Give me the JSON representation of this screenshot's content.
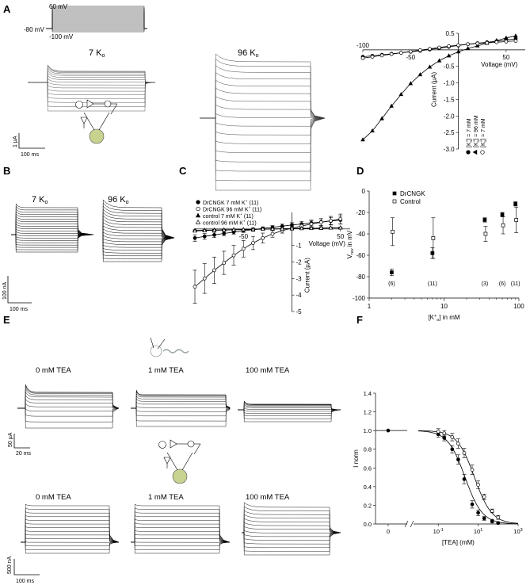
{
  "panel_labels": [
    "A",
    "B",
    "C",
    "D",
    "E",
    "F"
  ],
  "protocol": {
    "top_label": "60 mV",
    "hold_label": "-80 mV",
    "bottom_label": "-100 mV"
  },
  "panel_a": {
    "left_label": "7 K",
    "right_label": "96 K",
    "subscript": "o",
    "scale_y": "1 µA",
    "scale_x": "100 ms"
  },
  "panel_b": {
    "left_label": "7 K",
    "right_label": "96 K",
    "subscript": "o",
    "scale_y": "100 nA",
    "scale_x": "100 ms"
  },
  "panel_e": {
    "top_labels": [
      "0 mM TEA",
      "1 mM TEA",
      "100 mM TEA"
    ],
    "bottom_labels": [
      "0 mM TEA",
      "1 mM TEA",
      "100 mM TEA"
    ],
    "scale_top_y": "50 µA",
    "scale_top_x": "20 ms",
    "scale_bottom_y": "500 nA",
    "scale_bottom_x": "100 ms"
  },
  "chart_data": [
    {
      "panel": "A",
      "type": "line",
      "xlabel": "Voltage (mV)",
      "ylabel": "Current (µA)",
      "xlim": [
        -100,
        70
      ],
      "ylim": [
        -3.0,
        0.5
      ],
      "x_ticks": [
        "-100",
        "-50",
        "50"
      ],
      "x_tick_values": [
        -100,
        -50,
        50
      ],
      "y_ticks": [
        "0.5",
        "-0.5",
        "-1.0",
        "-1.5",
        "-2.0",
        "-2.5",
        "-3.0"
      ],
      "y_tick_values": [
        0.5,
        -0.5,
        -1.0,
        -1.5,
        -2.0,
        -2.5,
        -3.0
      ],
      "legend": [
        {
          "symbol": "filled-circle",
          "prefix": "[K",
          "sup": "+",
          "sub": "o",
          "suffix": "] =   7 mM"
        },
        {
          "symbol": "filled-triangle",
          "prefix": "[K",
          "sup": "+",
          "sub": "o",
          "suffix": "] = 96 mM"
        },
        {
          "symbol": "open-circle",
          "prefix": "[K",
          "sup": "+",
          "sub": "o",
          "suffix": "] =   7 mM"
        }
      ],
      "series": [
        {
          "marker": "filled-circle",
          "x": [
            -100,
            -90,
            -80,
            -70,
            -60,
            -50,
            -40,
            -30,
            -20,
            -10,
            0,
            10,
            20,
            30,
            40,
            50,
            60
          ],
          "y": [
            -0.21,
            -0.18,
            -0.15,
            -0.12,
            -0.09,
            -0.06,
            -0.03,
            0.01,
            0.05,
            0.09,
            0.13,
            0.17,
            0.2,
            0.23,
            0.26,
            0.3,
            0.33
          ]
        },
        {
          "marker": "filled-triangle",
          "x": [
            -100,
            -90,
            -80,
            -70,
            -60,
            -50,
            -40,
            -30,
            -20,
            -10,
            0,
            10,
            20,
            30,
            40,
            50,
            60
          ],
          "y": [
            -2.72,
            -2.45,
            -2.08,
            -1.7,
            -1.35,
            -1.02,
            -0.75,
            -0.52,
            -0.33,
            -0.18,
            -0.06,
            0.04,
            0.12,
            0.2,
            0.28,
            0.36,
            0.42
          ]
        },
        {
          "marker": "open-circle",
          "x": [
            -100,
            -90,
            -80,
            -70,
            -60,
            -50,
            -40,
            -30,
            -20,
            -10,
            0,
            10,
            20,
            30,
            40,
            50,
            60
          ],
          "y": [
            -0.25,
            -0.21,
            -0.17,
            -0.13,
            -0.09,
            -0.05,
            -0.01,
            0.03,
            0.07,
            0.11,
            0.14,
            0.17,
            0.19,
            0.21,
            0.23,
            0.25,
            0.27
          ]
        }
      ]
    },
    {
      "panel": "C",
      "type": "line",
      "xlabel": "Voltage (mV)",
      "ylabel": "Current (µA)",
      "xlim": [
        -100,
        60
      ],
      "ylim": [
        -5,
        1
      ],
      "x_ticks": [
        "-50",
        "50"
      ],
      "x_tick_values": [
        -50,
        50
      ],
      "y_ticks": [
        "-1",
        "-2",
        "-3",
        "-4",
        "-5"
      ],
      "y_tick_values": [
        -1,
        -2,
        -3,
        -4,
        -5
      ],
      "legend": [
        {
          "symbol": "filled-circle",
          "prefix": "DrCNGK 7 mM K",
          "sup": "+",
          "suffix": " (11)"
        },
        {
          "symbol": "open-circle",
          "prefix": "DrCNGK 96 mM K",
          "sup": "+",
          "suffix": " (11)"
        },
        {
          "symbol": "filled-triangle",
          "prefix": "control 7 mM K",
          "sup": "+",
          "suffix": " (11)"
        },
        {
          "symbol": "open-triangle",
          "prefix": "control 96 mM K",
          "sup": "+",
          "suffix": " (11)"
        }
      ],
      "series": [
        {
          "marker": "filled-circle",
          "x": [
            -100,
            -90,
            -80,
            -70,
            -60,
            -50,
            -40,
            -30,
            -20,
            -10,
            0,
            10,
            20,
            30,
            40,
            50
          ],
          "y": [
            -0.55,
            -0.45,
            -0.36,
            -0.27,
            -0.19,
            -0.11,
            -0.04,
            0.03,
            0.1,
            0.17,
            0.24,
            0.3,
            0.36,
            0.42,
            0.48,
            0.54
          ],
          "err": [
            0.2,
            0.18,
            0.16,
            0.14,
            0.12,
            0.1,
            0.1,
            0.1,
            0.1,
            0.12,
            0.14,
            0.16,
            0.18,
            0.2,
            0.22,
            0.25
          ]
        },
        {
          "marker": "open-circle",
          "x": [
            -100,
            -90,
            -80,
            -70,
            -60,
            -50,
            -40,
            -30,
            -20,
            -10,
            0,
            10,
            20,
            30,
            40,
            50
          ],
          "y": [
            -3.5,
            -3.0,
            -2.5,
            -2.05,
            -1.6,
            -1.2,
            -0.85,
            -0.55,
            -0.3,
            -0.1,
            0.05,
            0.18,
            0.3,
            0.4,
            0.5,
            0.6
          ],
          "err": [
            1.0,
            0.9,
            0.8,
            0.7,
            0.6,
            0.5,
            0.4,
            0.3,
            0.2,
            0.15,
            0.12,
            0.15,
            0.18,
            0.22,
            0.26,
            0.3
          ]
        },
        {
          "marker": "filled-triangle",
          "x": [
            -100,
            -90,
            -80,
            -70,
            -60,
            -50,
            -40,
            -30,
            -20,
            -10,
            0,
            10,
            20,
            30,
            40,
            50
          ],
          "y": [
            -0.08,
            -0.07,
            -0.06,
            -0.05,
            -0.04,
            -0.03,
            -0.02,
            -0.01,
            0.0,
            0.01,
            0.02,
            0.03,
            0.04,
            0.05,
            0.06,
            0.07
          ],
          "err": [
            0.03,
            0.03,
            0.03,
            0.03,
            0.03,
            0.03,
            0.03,
            0.03,
            0.03,
            0.03,
            0.03,
            0.03,
            0.03,
            0.03,
            0.03,
            0.03
          ]
        },
        {
          "marker": "open-triangle",
          "x": [
            -100,
            -90,
            -80,
            -70,
            -60,
            -50,
            -40,
            -30,
            -20,
            -10,
            0,
            10,
            20,
            30,
            40,
            50
          ],
          "y": [
            -0.12,
            -0.1,
            -0.08,
            -0.07,
            -0.05,
            -0.04,
            -0.03,
            -0.01,
            0.0,
            0.01,
            0.02,
            0.03,
            0.04,
            0.05,
            0.06,
            0.07
          ],
          "err": [
            0.04,
            0.04,
            0.04,
            0.04,
            0.04,
            0.04,
            0.04,
            0.04,
            0.04,
            0.04,
            0.04,
            0.04,
            0.04,
            0.04,
            0.04,
            0.04
          ]
        }
      ]
    },
    {
      "panel": "D",
      "type": "scatter",
      "xlabel_prefix": "[K",
      "xlabel_sup": "+",
      "xlabel_sub": "o",
      "xlabel_suffix": "] in mM",
      "ylabel": "V",
      "ylabel_sub": "rev",
      "ylabel_suffix": " in mV",
      "x_scale": "log",
      "xlim": [
        1,
        100
      ],
      "ylim": [
        -100,
        0
      ],
      "x_ticks": [
        "1",
        "10",
        "100"
      ],
      "x_tick_values": [
        1,
        10,
        100
      ],
      "y_ticks": [
        "0",
        "-20",
        "-40",
        "-60",
        "-80",
        "-100"
      ],
      "y_tick_values": [
        0,
        -20,
        -40,
        -60,
        -80,
        -100
      ],
      "legend": [
        "DrCNGK",
        "Control"
      ],
      "series": [
        {
          "name": "DrCNGK",
          "marker": "filled-square",
          "x": [
            2,
            7,
            35,
            60,
            90
          ],
          "y": [
            -76,
            -58,
            -27,
            -22,
            -12
          ],
          "err": [
            3,
            5,
            2,
            2,
            2
          ]
        },
        {
          "name": "Control",
          "marker": "open-square",
          "x": [
            2,
            7,
            35,
            60,
            90
          ],
          "y": [
            -38,
            -44,
            -40,
            -32,
            -27
          ],
          "err": [
            13,
            19,
            7,
            8,
            12
          ]
        }
      ],
      "n_labels": [
        {
          "x": 2,
          "text": "(6)"
        },
        {
          "x": 7,
          "text": "(11)"
        },
        {
          "x": 35,
          "text": "(3)"
        },
        {
          "x": 60,
          "text": "(6)"
        },
        {
          "x": 90,
          "text": "(11)"
        }
      ]
    },
    {
      "panel": "F",
      "type": "line",
      "xlabel": "[TEA] (mM)",
      "ylabel": "I norm",
      "x_scale": "log",
      "xlim": [
        0.01,
        1000
      ],
      "ylim": [
        0,
        1.4
      ],
      "x_ticks": [
        "0",
        "10",
        "10",
        "10"
      ],
      "x_tick_exponents": [
        "",
        "-1",
        "1",
        "3"
      ],
      "x_tick_values": [
        0,
        0.1,
        10,
        1000
      ],
      "y_ticks": [
        "0.0",
        "0.2",
        "0.4",
        "0.6",
        "0.8",
        "1.0",
        "1.2",
        "1.4"
      ],
      "y_tick_values": [
        0,
        0.2,
        0.4,
        0.6,
        0.8,
        1.0,
        1.2,
        1.4
      ],
      "zero_point": {
        "y": 1.0
      },
      "series": [
        {
          "marker": "filled-circle",
          "ic50": 2.2,
          "x": [
            0.1,
            0.2,
            0.5,
            1,
            2,
            5,
            10,
            20,
            50,
            100
          ],
          "y": [
            0.96,
            0.92,
            0.8,
            0.69,
            0.48,
            0.21,
            0.12,
            0.06,
            0.03,
            0.01
          ],
          "err": [
            0.03,
            0.03,
            0.04,
            0.05,
            0.05,
            0.04,
            0.03,
            0.02,
            0.02,
            0.01
          ]
        },
        {
          "marker": "open-circle",
          "ic50": 6.5,
          "x": [
            0.1,
            0.2,
            0.5,
            1,
            2,
            5,
            10,
            20,
            50,
            100
          ],
          "y": [
            0.99,
            0.97,
            0.93,
            0.86,
            0.76,
            0.58,
            0.42,
            0.29,
            0.14,
            0.07
          ],
          "err": [
            0.03,
            0.03,
            0.04,
            0.05,
            0.05,
            0.05,
            0.04,
            0.03,
            0.02,
            0.02
          ]
        }
      ]
    }
  ]
}
